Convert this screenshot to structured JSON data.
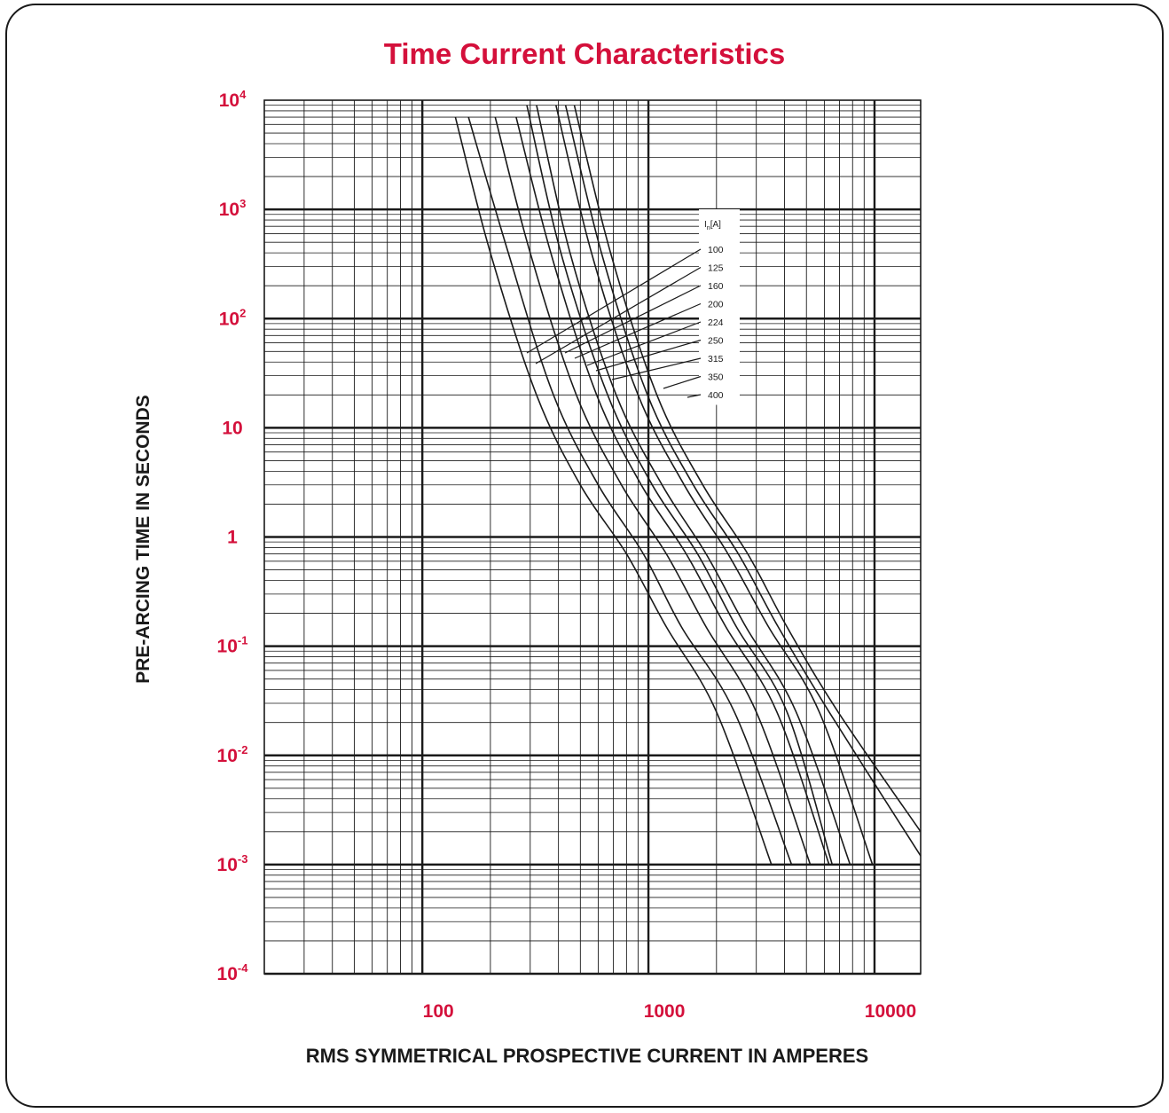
{
  "chart_data": {
    "type": "line",
    "title": "Time Current Characteristics",
    "xlabel": "RMS SYMMETRICAL PROSPECTIVE CURRENT IN AMPERES",
    "ylabel": "PRE-ARCING TIME IN SECONDS",
    "x_scale": "log",
    "y_scale": "log",
    "xlim": [
      20,
      16000
    ],
    "ylim": [
      0.0001,
      10000
    ],
    "x_ticks": [
      {
        "value": 100,
        "label": "100"
      },
      {
        "value": 1000,
        "label": "1000"
      },
      {
        "value": 10000,
        "label": "10000"
      }
    ],
    "y_ticks": [
      {
        "value": 10000,
        "base": "10",
        "exp": "4"
      },
      {
        "value": 1000,
        "base": "10",
        "exp": "3"
      },
      {
        "value": 100,
        "base": "10",
        "exp": "2"
      },
      {
        "value": 10,
        "base": "10",
        "exp": ""
      },
      {
        "value": 1,
        "base": "1",
        "exp": ""
      },
      {
        "value": 0.1,
        "base": "10",
        "exp": "-1"
      },
      {
        "value": 0.01,
        "base": "10",
        "exp": "-2"
      },
      {
        "value": 0.001,
        "base": "10",
        "exp": "-3"
      },
      {
        "value": 0.0001,
        "base": "10",
        "exp": "-4"
      }
    ],
    "grid": true,
    "legend": {
      "header_main": "I",
      "header_sub": "n",
      "header_unit": "[A]",
      "placement": "right"
    },
    "series": [
      {
        "name": "100",
        "points": [
          [
            140,
            7000
          ],
          [
            200,
            400
          ],
          [
            320,
            20
          ],
          [
            500,
            3
          ],
          [
            800,
            0.7
          ],
          [
            1200,
            0.15
          ],
          [
            2000,
            0.025
          ],
          [
            3500,
            0.001
          ]
        ]
      },
      {
        "name": "125",
        "points": [
          [
            160,
            7000
          ],
          [
            240,
            400
          ],
          [
            380,
            20
          ],
          [
            600,
            3
          ],
          [
            950,
            0.7
          ],
          [
            1400,
            0.15
          ],
          [
            2400,
            0.025
          ],
          [
            4300,
            0.001
          ]
        ]
      },
      {
        "name": "160",
        "points": [
          [
            210,
            7000
          ],
          [
            300,
            400
          ],
          [
            480,
            20
          ],
          [
            760,
            3
          ],
          [
            1200,
            0.7
          ],
          [
            1800,
            0.15
          ],
          [
            3000,
            0.025
          ],
          [
            5200,
            0.001
          ]
        ]
      },
      {
        "name": "200",
        "points": [
          [
            260,
            7000
          ],
          [
            370,
            400
          ],
          [
            590,
            20
          ],
          [
            930,
            3
          ],
          [
            1470,
            0.7
          ],
          [
            2200,
            0.15
          ],
          [
            3700,
            0.025
          ],
          [
            6300,
            0.001
          ]
        ]
      },
      {
        "name": "224",
        "points": [
          [
            290,
            9000
          ],
          [
            410,
            400
          ],
          [
            660,
            20
          ],
          [
            1040,
            3
          ],
          [
            1650,
            0.7
          ],
          [
            2450,
            0.15
          ],
          [
            4100,
            0.025
          ],
          [
            6500,
            0.001
          ]
        ]
      },
      {
        "name": "250",
        "points": [
          [
            320,
            9000
          ],
          [
            450,
            400
          ],
          [
            720,
            20
          ],
          [
            1150,
            3
          ],
          [
            1800,
            0.7
          ],
          [
            2700,
            0.15
          ],
          [
            4500,
            0.025
          ],
          [
            7800,
            0.001
          ]
        ]
      },
      {
        "name": "315",
        "points": [
          [
            390,
            9000
          ],
          [
            560,
            400
          ],
          [
            900,
            20
          ],
          [
            1440,
            3
          ],
          [
            2250,
            0.7
          ],
          [
            3400,
            0.15
          ],
          [
            5700,
            0.025
          ],
          [
            9800,
            0.001
          ]
        ]
      },
      {
        "name": "350",
        "points": [
          [
            430,
            9000
          ],
          [
            620,
            400
          ],
          [
            990,
            20
          ],
          [
            1580,
            3
          ],
          [
            2500,
            0.7
          ],
          [
            3750,
            0.15
          ],
          [
            6300,
            0.025
          ],
          [
            16000,
            0.0012
          ]
        ]
      },
      {
        "name": "400",
        "points": [
          [
            470,
            9000
          ],
          [
            680,
            400
          ],
          [
            1090,
            20
          ],
          [
            1740,
            3
          ],
          [
            2750,
            0.7
          ],
          [
            4100,
            0.15
          ],
          [
            6900,
            0.025
          ],
          [
            16000,
            0.002
          ]
        ]
      }
    ],
    "colors": {
      "title": "#d4103b",
      "tick_labels": "#d4103b",
      "axis_labels": "#1a1a1a",
      "lines": "#1a1a1a",
      "grid": "#1a1a1a"
    }
  }
}
